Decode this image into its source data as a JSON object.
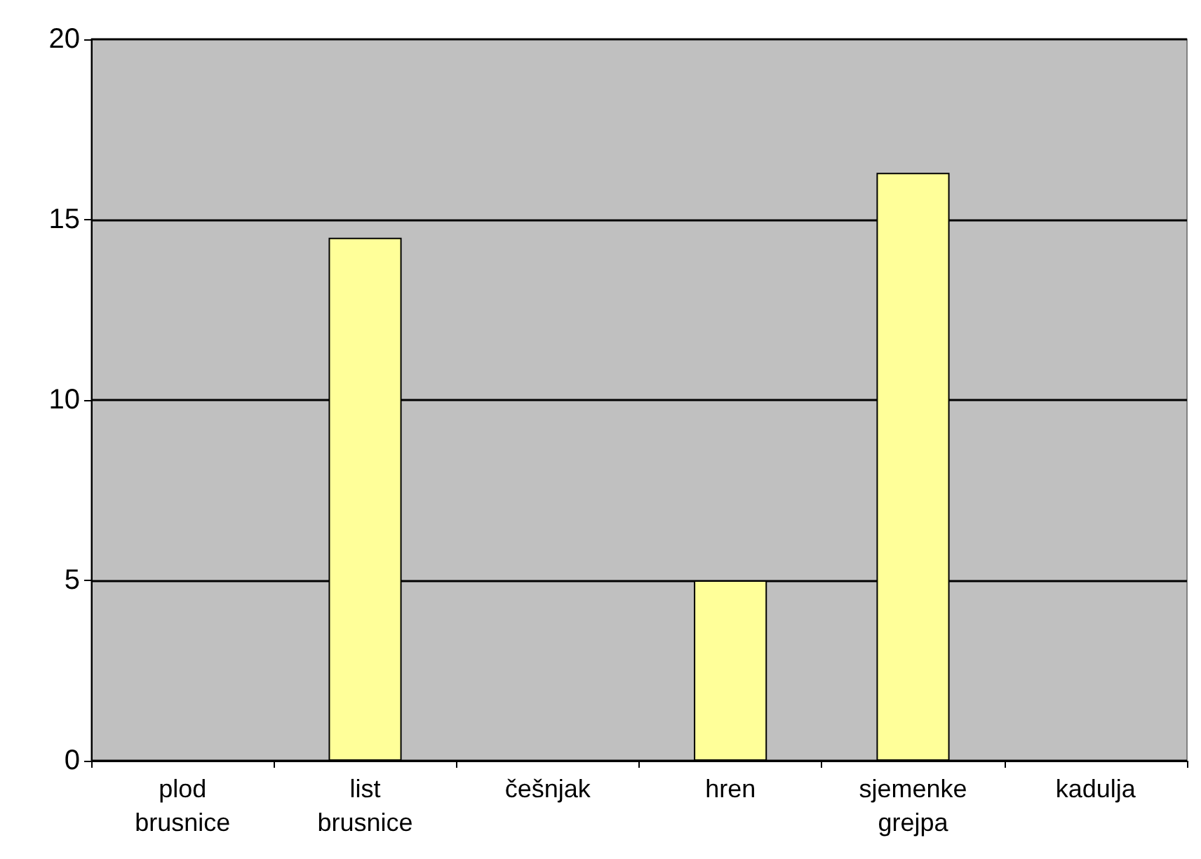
{
  "chart_data": {
    "type": "bar",
    "categories": [
      "plod\nbrusnice",
      "list\nbrusnice",
      "češnjak",
      "hren",
      "sjemenke\ngrejpa",
      "kadulja"
    ],
    "values": [
      0,
      14.5,
      0,
      5,
      16.3,
      0
    ],
    "color": "#ffff99",
    "ylim": [
      0,
      20
    ],
    "yticks": [
      0,
      5,
      10,
      15,
      20
    ],
    "grid": "y"
  }
}
